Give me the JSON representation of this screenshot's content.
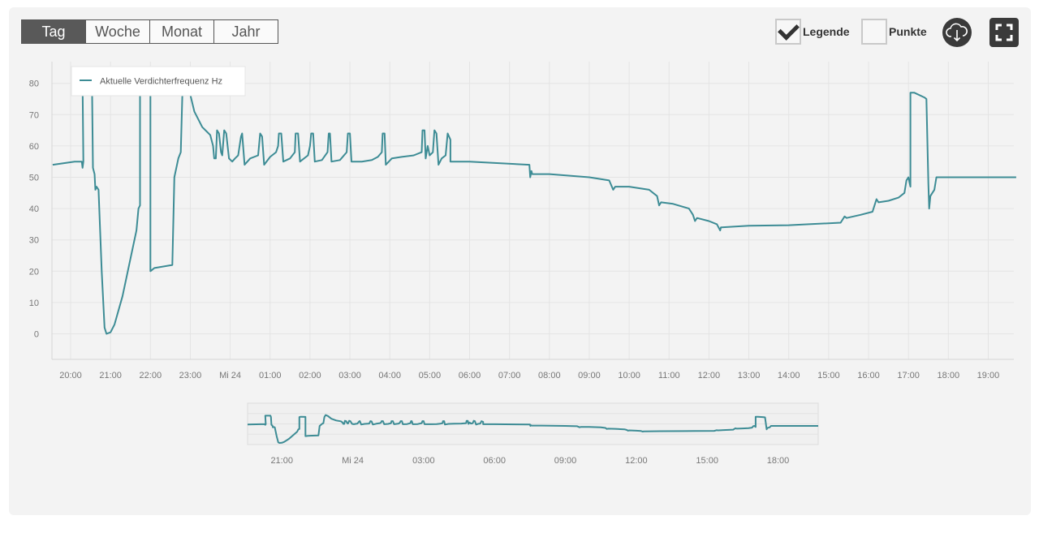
{
  "toolbar": {
    "tabs": [
      {
        "label": "Tag",
        "active": true
      },
      {
        "label": "Woche",
        "active": false
      },
      {
        "label": "Monat",
        "active": false
      },
      {
        "label": "Jahr",
        "active": false
      }
    ],
    "legend_label": "Legende",
    "legend_checked": true,
    "points_label": "Punkte",
    "points_checked": false,
    "download_icon": "cloud-download-icon",
    "fullscreen_icon": "fullscreen-icon"
  },
  "colors": {
    "series": "#3d8c95",
    "grid": "#e4e4e4",
    "active_tab": "#595959"
  },
  "chart_data": {
    "type": "line",
    "title": "",
    "legend": {
      "position": "top-left",
      "entries": [
        "Aktuelle Verdichterfrequenz Hz"
      ]
    },
    "ylim": [
      -8,
      88
    ],
    "yticks": [
      0,
      10,
      20,
      30,
      40,
      50,
      60,
      70,
      80
    ],
    "x_unit": "hours from 20:00",
    "xlim": [
      -0.45,
      23.7
    ],
    "xticks": [
      {
        "x": 0,
        "label": "20:00"
      },
      {
        "x": 1,
        "label": "21:00"
      },
      {
        "x": 2,
        "label": "22:00"
      },
      {
        "x": 3,
        "label": "23:00"
      },
      {
        "x": 4,
        "label": "Mi 24"
      },
      {
        "x": 5,
        "label": "01:00"
      },
      {
        "x": 6,
        "label": "02:00"
      },
      {
        "x": 7,
        "label": "03:00"
      },
      {
        "x": 8,
        "label": "04:00"
      },
      {
        "x": 9,
        "label": "05:00"
      },
      {
        "x": 10,
        "label": "06:00"
      },
      {
        "x": 11,
        "label": "07:00"
      },
      {
        "x": 12,
        "label": "08:00"
      },
      {
        "x": 13,
        "label": "09:00"
      },
      {
        "x": 14,
        "label": "10:00"
      },
      {
        "x": 15,
        "label": "11:00"
      },
      {
        "x": 16,
        "label": "12:00"
      },
      {
        "x": 17,
        "label": "13:00"
      },
      {
        "x": 18,
        "label": "14:00"
      },
      {
        "x": 19,
        "label": "15:00"
      },
      {
        "x": 20,
        "label": "16:00"
      },
      {
        "x": 21,
        "label": "17:00"
      },
      {
        "x": 22,
        "label": "18:00"
      },
      {
        "x": 23,
        "label": "19:00"
      }
    ],
    "navigator_ticks": [
      {
        "x": 1,
        "label": "21:00"
      },
      {
        "x": 4,
        "label": "Mi 24"
      },
      {
        "x": 7,
        "label": "03:00"
      },
      {
        "x": 10,
        "label": "06:00"
      },
      {
        "x": 13,
        "label": "09:00"
      },
      {
        "x": 16,
        "label": "12:00"
      },
      {
        "x": 19,
        "label": "15:00"
      },
      {
        "x": 22,
        "label": "18:00"
      }
    ],
    "grid": true,
    "series": [
      {
        "name": "Aktuelle Verdichterfrequenz Hz",
        "points": [
          [
            -0.45,
            54
          ],
          [
            0.1,
            55
          ],
          [
            0.28,
            55
          ],
          [
            0.3,
            53
          ],
          [
            0.32,
            55
          ],
          [
            0.3,
            80
          ],
          [
            0.52,
            80
          ],
          [
            0.54,
            76
          ],
          [
            0.56,
            53
          ],
          [
            0.6,
            51
          ],
          [
            0.62,
            46
          ],
          [
            0.65,
            47
          ],
          [
            0.7,
            46
          ],
          [
            0.78,
            20
          ],
          [
            0.85,
            2
          ],
          [
            0.9,
            0
          ],
          [
            1.0,
            0.5
          ],
          [
            1.1,
            3
          ],
          [
            1.3,
            12
          ],
          [
            1.5,
            24
          ],
          [
            1.65,
            33
          ],
          [
            1.7,
            40
          ],
          [
            1.74,
            41
          ],
          [
            1.74,
            76
          ],
          [
            1.8,
            77
          ],
          [
            2.0,
            76.5
          ],
          [
            2.0,
            20
          ],
          [
            2.1,
            21
          ],
          [
            2.55,
            22
          ],
          [
            2.6,
            50
          ],
          [
            2.7,
            56
          ],
          [
            2.76,
            58
          ],
          [
            2.8,
            76
          ],
          [
            2.85,
            82
          ],
          [
            2.95,
            79
          ],
          [
            3.1,
            71
          ],
          [
            3.3,
            66
          ],
          [
            3.5,
            63.5
          ],
          [
            3.57,
            60
          ],
          [
            3.6,
            56
          ],
          [
            3.64,
            56
          ],
          [
            3.67,
            65
          ],
          [
            3.72,
            64
          ],
          [
            3.77,
            58
          ],
          [
            3.8,
            57
          ],
          [
            3.85,
            65
          ],
          [
            3.9,
            64
          ],
          [
            3.97,
            56
          ],
          [
            4.05,
            55
          ],
          [
            4.12,
            56
          ],
          [
            4.2,
            57
          ],
          [
            4.27,
            63
          ],
          [
            4.3,
            64
          ],
          [
            4.36,
            54
          ],
          [
            4.5,
            56
          ],
          [
            4.7,
            57
          ],
          [
            4.75,
            64
          ],
          [
            4.8,
            63
          ],
          [
            4.85,
            54
          ],
          [
            5.0,
            56.5
          ],
          [
            5.15,
            58
          ],
          [
            5.2,
            60
          ],
          [
            5.22,
            64
          ],
          [
            5.28,
            64
          ],
          [
            5.33,
            55
          ],
          [
            5.5,
            56
          ],
          [
            5.62,
            58
          ],
          [
            5.64,
            64
          ],
          [
            5.7,
            64
          ],
          [
            5.75,
            55
          ],
          [
            5.95,
            57
          ],
          [
            6.0,
            60
          ],
          [
            6.03,
            64
          ],
          [
            6.08,
            64
          ],
          [
            6.12,
            55
          ],
          [
            6.3,
            55.5
          ],
          [
            6.44,
            58
          ],
          [
            6.47,
            64
          ],
          [
            6.5,
            64
          ],
          [
            6.54,
            55
          ],
          [
            6.75,
            55.5
          ],
          [
            6.92,
            58
          ],
          [
            6.95,
            64
          ],
          [
            7.0,
            64
          ],
          [
            7.04,
            55
          ],
          [
            7.3,
            55
          ],
          [
            7.55,
            55.5
          ],
          [
            7.7,
            56.5
          ],
          [
            7.8,
            58
          ],
          [
            7.82,
            64
          ],
          [
            7.87,
            64
          ],
          [
            7.9,
            54
          ],
          [
            8.05,
            56
          ],
          [
            8.3,
            56.5
          ],
          [
            8.6,
            57
          ],
          [
            8.8,
            58
          ],
          [
            8.82,
            65
          ],
          [
            8.87,
            65
          ],
          [
            8.9,
            56
          ],
          [
            8.95,
            60
          ],
          [
            9.0,
            57
          ],
          [
            9.08,
            58
          ],
          [
            9.12,
            65
          ],
          [
            9.17,
            64
          ],
          [
            9.22,
            54
          ],
          [
            9.3,
            56
          ],
          [
            9.4,
            57
          ],
          [
            9.45,
            64
          ],
          [
            9.52,
            62
          ],
          [
            9.52,
            55
          ],
          [
            10.0,
            55
          ],
          [
            11.5,
            54
          ],
          [
            11.52,
            50
          ],
          [
            11.55,
            52
          ],
          [
            11.57,
            51
          ],
          [
            12.0,
            51
          ],
          [
            13.0,
            50
          ],
          [
            13.5,
            49
          ],
          [
            13.6,
            46
          ],
          [
            13.65,
            47
          ],
          [
            14.0,
            47
          ],
          [
            14.5,
            46
          ],
          [
            14.7,
            44
          ],
          [
            14.75,
            41
          ],
          [
            14.8,
            42
          ],
          [
            15.1,
            41.5
          ],
          [
            15.5,
            40
          ],
          [
            15.6,
            38
          ],
          [
            15.65,
            36
          ],
          [
            15.7,
            37
          ],
          [
            16.0,
            36
          ],
          [
            16.2,
            35
          ],
          [
            16.28,
            33
          ],
          [
            16.3,
            34
          ],
          [
            17.0,
            34.5
          ],
          [
            18.0,
            34.7
          ],
          [
            18.5,
            35
          ],
          [
            19.3,
            35.5
          ],
          [
            19.4,
            37.5
          ],
          [
            19.45,
            37
          ],
          [
            19.8,
            38
          ],
          [
            20.1,
            39
          ],
          [
            20.2,
            43
          ],
          [
            20.25,
            42
          ],
          [
            20.5,
            42.5
          ],
          [
            20.75,
            43.5
          ],
          [
            20.9,
            45
          ],
          [
            20.95,
            49
          ],
          [
            21.0,
            50
          ],
          [
            21.05,
            47
          ],
          [
            21.05,
            77
          ],
          [
            21.15,
            77
          ],
          [
            21.4,
            75.5
          ],
          [
            21.45,
            75
          ],
          [
            21.5,
            48
          ],
          [
            21.52,
            40
          ],
          [
            21.55,
            44
          ],
          [
            21.6,
            45
          ],
          [
            21.65,
            46
          ],
          [
            21.7,
            50
          ],
          [
            21.75,
            50
          ],
          [
            22.5,
            50
          ],
          [
            23.7,
            50
          ]
        ]
      }
    ]
  }
}
